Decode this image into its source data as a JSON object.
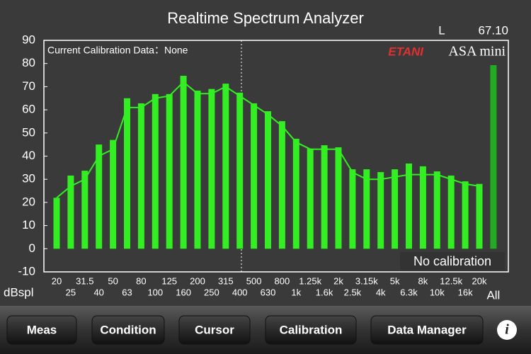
{
  "chart_data": {
    "type": "bar",
    "title": "Realtime Spectrum Analyzer",
    "channel": "L",
    "level": "67.10",
    "y_label": "dBspl",
    "calibration_note": "Current Calibration Data：None",
    "calibration_status": "No calibration",
    "brand": "ETANI",
    "product": "ASA mini",
    "categories": [
      "20",
      "25",
      "31.5",
      "40",
      "50",
      "63",
      "80",
      "100",
      "125",
      "160",
      "200",
      "250",
      "315",
      "400",
      "500",
      "630",
      "800",
      "1k",
      "1.25k",
      "1.6k",
      "2k",
      "2.5k",
      "3.15k",
      "4k",
      "5k",
      "6.3k",
      "8k",
      "10k",
      "12.5k",
      "16k",
      "20k",
      "All"
    ],
    "series": [
      {
        "type": "bar",
        "color": "#33ee22",
        "last_color": "#22aa22",
        "values": [
          22,
          31.6,
          33.7,
          45,
          47,
          65,
          62.8,
          66.8,
          66.8,
          74.7,
          68.3,
          69,
          71.3,
          67.4,
          62.8,
          59.4,
          55.1,
          47.5,
          43.2,
          44.7,
          43.8,
          34.3,
          34.3,
          33.1,
          34.3,
          36.8,
          35.6,
          33.4,
          31.6,
          29.1,
          28,
          79.3
        ]
      },
      {
        "type": "line",
        "color": "#33ee22",
        "values": [
          22,
          27,
          30,
          40,
          43,
          61,
          61,
          65,
          66,
          72,
          67,
          67,
          70,
          66,
          62,
          58,
          53,
          46,
          43,
          43,
          43,
          33,
          30,
          30,
          31,
          32,
          32,
          32,
          30,
          28,
          27,
          null
        ]
      }
    ],
    "ylim": [
      -10,
      90
    ],
    "yticks": [
      -10,
      0,
      10,
      20,
      30,
      40,
      50,
      60,
      70,
      80,
      90
    ]
  },
  "toolbar": {
    "buttons": [
      "Meas",
      "Condition",
      "Cursor",
      "Calibration",
      "Data Manager"
    ],
    "info": "i"
  }
}
